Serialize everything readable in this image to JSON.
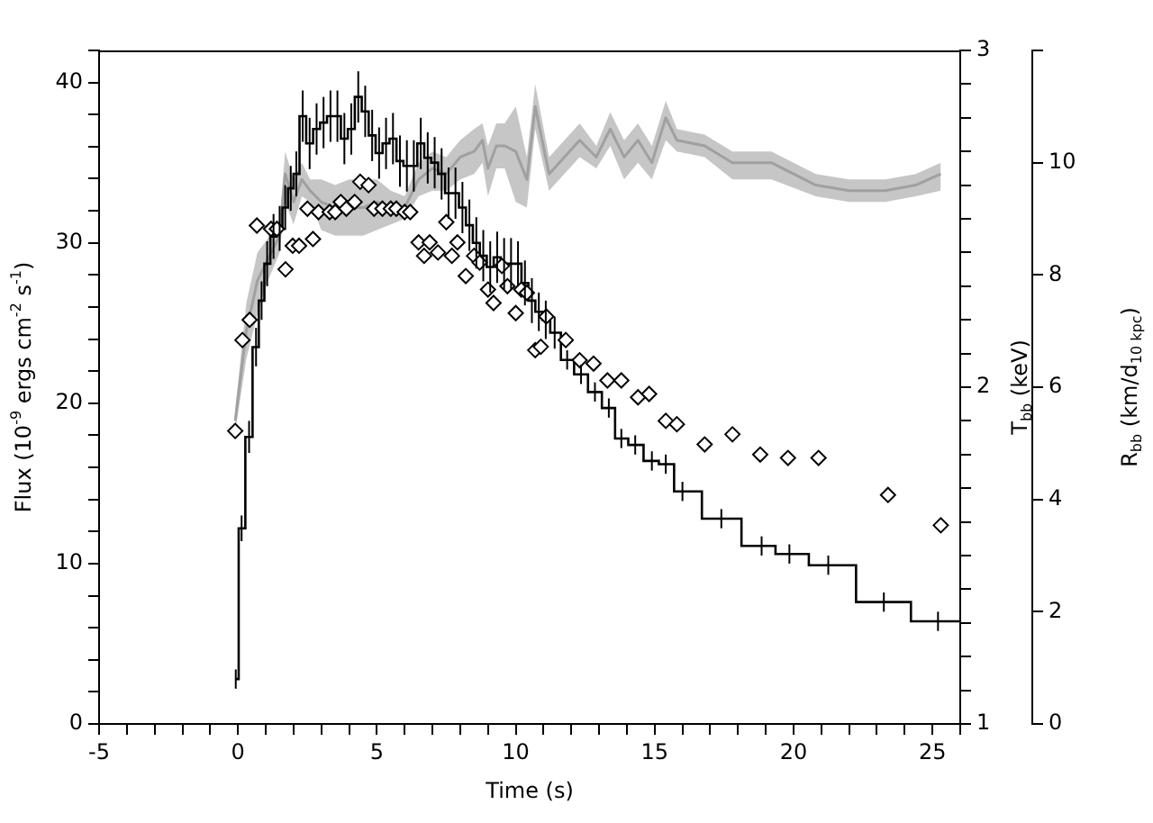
{
  "chart_data": {
    "type": "step",
    "xlabel": "Time (s)",
    "ylabel": "Flux (10$^{-9}$ ergs cm$^{-2}$ s$^{-1}$)",
    "y2label": "T$_{bb}$ (keV)",
    "y3label": "R$_{bb}$ (km/d$_{10 kpc}$)",
    "legend": false,
    "grid": false,
    "xlim": [
      -5,
      26
    ],
    "xticks": [
      -5,
      {
        "value": -4,
        "label": null
      },
      {
        "value": -3,
        "label": null
      },
      {
        "value": -2,
        "label": null
      },
      {
        "value": -1,
        "label": null
      },
      0,
      {
        "value": 1,
        "label": null
      },
      {
        "value": 2,
        "label": null
      },
      {
        "value": 3,
        "label": null
      },
      {
        "value": 4,
        "label": null
      },
      5,
      {
        "value": 6,
        "label": null
      },
      {
        "value": 7,
        "label": null
      },
      {
        "value": 8,
        "label": null
      },
      {
        "value": 9,
        "label": null
      },
      10,
      {
        "value": 11,
        "label": null
      },
      {
        "value": 12,
        "label": null
      },
      {
        "value": 13,
        "label": null
      },
      {
        "value": 14,
        "label": null
      },
      15,
      {
        "value": 16,
        "label": null
      },
      {
        "value": 17,
        "label": null
      },
      {
        "value": 18,
        "label": null
      },
      {
        "value": 19,
        "label": null
      },
      20,
      {
        "value": 21,
        "label": null
      },
      {
        "value": 22,
        "label": null
      },
      {
        "value": 23,
        "label": null
      },
      {
        "value": 24,
        "label": null
      },
      25,
      {
        "value": 26,
        "label": null
      }
    ],
    "ylim": [
      0,
      42
    ],
    "yticks": [
      0,
      {
        "value": 2,
        "label": null
      },
      {
        "value": 4,
        "label": null
      },
      {
        "value": 6,
        "label": null
      },
      {
        "value": 8,
        "label": null
      },
      10,
      {
        "value": 12,
        "label": null
      },
      {
        "value": 14,
        "label": null
      },
      {
        "value": 16,
        "label": null
      },
      {
        "value": 18,
        "label": null
      },
      20,
      {
        "value": 22,
        "label": null
      },
      {
        "value": 24,
        "label": null
      },
      {
        "value": 26,
        "label": null
      },
      {
        "value": 28,
        "label": null
      },
      30,
      {
        "value": 32,
        "label": null
      },
      {
        "value": 34,
        "label": null
      },
      {
        "value": 36,
        "label": null
      },
      {
        "value": 38,
        "label": null
      },
      40,
      {
        "value": 42,
        "label": null
      }
    ],
    "y2lim": [
      1,
      3
    ],
    "y2ticks": [
      1,
      {
        "value": 1.1,
        "label": null
      },
      {
        "value": 1.2,
        "label": null
      },
      {
        "value": 1.3,
        "label": null
      },
      {
        "value": 1.4,
        "label": null
      },
      {
        "value": 1.5,
        "label": null
      },
      {
        "value": 1.6,
        "label": null
      },
      {
        "value": 1.7,
        "label": null
      },
      {
        "value": 1.8,
        "label": null
      },
      {
        "value": 1.9,
        "label": null
      },
      2,
      {
        "value": 2.1,
        "label": null
      },
      {
        "value": 2.2,
        "label": null
      },
      {
        "value": 2.3,
        "label": null
      },
      {
        "value": 2.4,
        "label": null
      },
      {
        "value": 2.5,
        "label": null
      },
      {
        "value": 2.6,
        "label": null
      },
      {
        "value": 2.7,
        "label": null
      },
      {
        "value": 2.8,
        "label": null
      },
      {
        "value": 2.9,
        "label": null
      },
      3
    ],
    "y3lim": [
      0,
      12
    ],
    "y3ticks": [
      0,
      2,
      4,
      6,
      8,
      10,
      {
        "value": 12,
        "label": null
      }
    ],
    "series": [
      {
        "color": "#000000",
        "x": [
          -0.08,
          0.13,
          0.4,
          0.65,
          0.85,
          1.05,
          1.28,
          1.5,
          1.7,
          1.9,
          2.1,
          2.33,
          2.58,
          2.83,
          3.08,
          3.33,
          3.58,
          3.83,
          4.08,
          4.33,
          4.58,
          4.83,
          5.08,
          5.33,
          5.58,
          5.83,
          6.08,
          6.33,
          6.58,
          6.83,
          7.08,
          7.33,
          7.58,
          7.83,
          8.08,
          8.33,
          8.58,
          8.83,
          9.08,
          9.33,
          9.58,
          9.83,
          10.08,
          10.33,
          10.58,
          10.83,
          11.08,
          11.4,
          11.85,
          12.35,
          12.85,
          13.35,
          13.8,
          14.3,
          14.9,
          15.4,
          16.0,
          17.4,
          18.85,
          19.85,
          21.25,
          23.25,
          25.2,
          26.0
        ],
        "values": [
          2.8,
          12.2,
          17.9,
          23.5,
          26.4,
          28.7,
          30.4,
          30.9,
          32.2,
          33.4,
          34.3,
          37.9,
          36.2,
          37.1,
          37.5,
          37.9,
          37.9,
          36.5,
          37.1,
          39.1,
          38.2,
          36.7,
          35.6,
          36.2,
          36.5,
          35.1,
          34.8,
          34.8,
          36.2,
          35.3,
          35.0,
          34.3,
          33.1,
          33.1,
          32.2,
          31.1,
          30.0,
          29.2,
          28.5,
          29.1,
          28.7,
          28.7,
          28.7,
          27.5,
          26.4,
          25.7,
          25.2,
          24.4,
          22.7,
          21.8,
          20.7,
          19.7,
          17.8,
          17.4,
          16.4,
          16.2,
          14.5,
          12.8,
          11.1,
          10.6,
          9.9,
          7.6,
          6.4,
          6.4
        ],
        "errors": [
          0.6,
          0.8,
          1.0,
          1.2,
          1.2,
          1.4,
          1.4,
          1.4,
          1.4,
          1.4,
          1.4,
          1.6,
          1.6,
          1.6,
          1.6,
          1.6,
          1.6,
          1.6,
          1.6,
          1.6,
          1.6,
          1.6,
          1.6,
          1.6,
          1.6,
          1.6,
          1.6,
          1.6,
          1.6,
          1.6,
          1.6,
          1.6,
          1.6,
          1.6,
          1.6,
          1.6,
          1.6,
          1.6,
          1.6,
          1.6,
          1.6,
          1.6,
          1.4,
          1.4,
          1.4,
          1.2,
          1.2,
          1.0,
          0.6,
          0.6,
          0.6,
          0.6,
          0.6,
          0.6,
          0.6,
          0.6,
          0.6,
          0.6,
          0.6,
          0.6,
          0.6,
          0.6,
          0.6,
          null
        ]
      },
      {
        "type": "scatter",
        "axis": "y2",
        "color": "#000000",
        "marker": "diamond",
        "x": [
          -0.1,
          0.16,
          0.42,
          0.68,
          1.19,
          1.4,
          1.71,
          1.97,
          2.2,
          2.5,
          2.7,
          2.9,
          3.3,
          3.5,
          3.7,
          3.9,
          4.2,
          4.4,
          4.7,
          4.9,
          5.2,
          5.5,
          5.7,
          6.0,
          6.2,
          6.5,
          6.7,
          6.9,
          7.2,
          7.5,
          7.7,
          7.9,
          8.2,
          8.5,
          8.7,
          9.0,
          9.2,
          9.5,
          9.7,
          10.0,
          10.2,
          10.4,
          10.7,
          10.9,
          11.1,
          11.8,
          12.3,
          12.8,
          13.3,
          13.8,
          14.4,
          14.8,
          15.4,
          15.8,
          16.8,
          17.8,
          18.8,
          19.8,
          20.9,
          23.4,
          25.3
        ],
        "values": [
          1.87,
          2.14,
          2.2,
          2.48,
          2.47,
          2.47,
          2.35,
          2.42,
          2.42,
          2.53,
          2.44,
          2.52,
          2.52,
          2.52,
          2.55,
          2.53,
          2.55,
          2.61,
          2.6,
          2.53,
          2.53,
          2.53,
          2.53,
          2.52,
          2.52,
          2.43,
          2.39,
          2.43,
          2.4,
          2.49,
          2.39,
          2.43,
          2.33,
          2.39,
          2.37,
          2.29,
          2.25,
          2.36,
          2.3,
          2.22,
          2.29,
          2.28,
          2.11,
          2.12,
          2.21,
          2.14,
          2.08,
          2.07,
          2.02,
          2.02,
          1.97,
          1.98,
          1.9,
          1.89,
          1.83,
          1.86,
          1.8,
          1.79,
          1.79,
          1.68,
          1.59
        ]
      },
      {
        "type": "line",
        "axis": "y3",
        "color": "#a0a0a0",
        "x": [
          -0.1,
          0.3,
          0.7,
          1.0,
          1.5,
          1.7,
          2.0,
          2.3,
          2.6,
          3.0,
          3.5,
          4.0,
          4.5,
          5.0,
          5.5,
          6.0,
          6.5,
          7.0,
          7.5,
          8.0,
          8.5,
          8.8,
          9.0,
          9.3,
          9.6,
          10.0,
          10.4,
          10.7,
          11.2,
          12.3,
          12.9,
          13.4,
          13.9,
          14.4,
          14.9,
          15.4,
          15.8,
          16.8,
          17.8,
          19.2,
          20.8,
          22.0,
          23.3,
          24.4,
          25.3
        ],
        "values": [
          5.4,
          7.0,
          7.9,
          8.2,
          8.7,
          9.8,
          9.3,
          9.7,
          9.5,
          9.3,
          9.2,
          9.2,
          9.2,
          9.3,
          9.2,
          9.2,
          9.7,
          9.9,
          9.8,
          10.1,
          10.2,
          10.4,
          9.9,
          10.3,
          10.3,
          10.2,
          9.7,
          11.0,
          9.8,
          10.4,
          10.1,
          10.6,
          10.1,
          10.4,
          10.0,
          10.8,
          10.4,
          10.3,
          10.0,
          10.0,
          9.6,
          9.5,
          9.5,
          9.6,
          9.8
        ],
        "lower": [
          5.2,
          6.5,
          7.3,
          7.8,
          8.4,
          9.3,
          8.9,
          9.4,
          9.3,
          8.8,
          8.7,
          8.7,
          8.7,
          8.8,
          8.9,
          9.0,
          9.4,
          9.5,
          9.5,
          9.7,
          9.8,
          10.0,
          9.4,
          9.9,
          9.9,
          9.3,
          9.2,
          10.6,
          9.5,
          10.1,
          9.9,
          10.3,
          9.7,
          10.0,
          9.7,
          10.4,
          10.2,
          10.1,
          9.7,
          9.7,
          9.4,
          9.3,
          9.3,
          9.4,
          9.5
        ],
        "upper": [
          5.6,
          7.5,
          8.4,
          8.6,
          9.0,
          10.2,
          9.7,
          10.0,
          9.7,
          9.7,
          9.6,
          9.7,
          9.7,
          9.7,
          9.5,
          9.4,
          10.0,
          10.2,
          10.1,
          10.4,
          10.6,
          10.7,
          10.3,
          10.7,
          10.7,
          11.0,
          10.1,
          11.4,
          10.1,
          10.7,
          10.3,
          10.9,
          10.4,
          10.7,
          10.3,
          11.1,
          10.6,
          10.5,
          10.2,
          10.2,
          9.8,
          9.7,
          9.7,
          9.8,
          10.0
        ]
      }
    ]
  }
}
